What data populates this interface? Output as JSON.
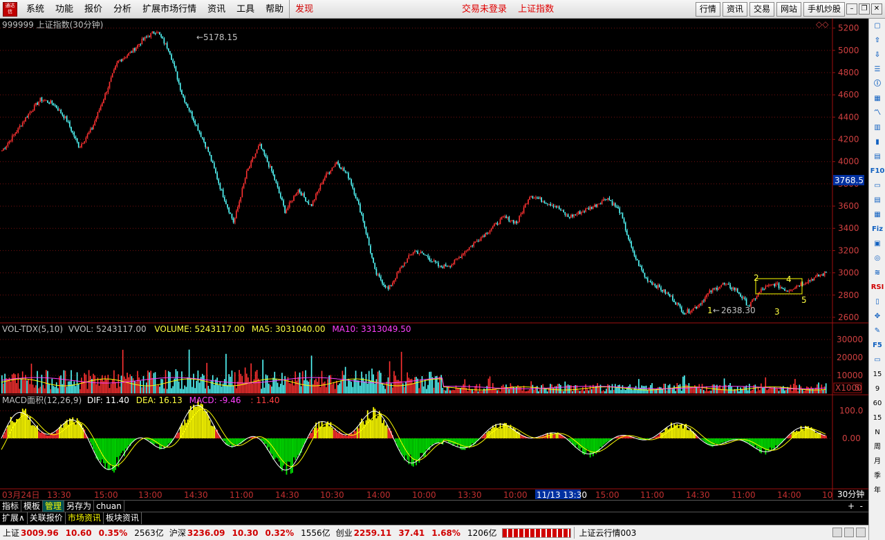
{
  "menubar": {
    "logo_text": "通达信",
    "items": [
      "系统",
      "功能",
      "报价",
      "分析",
      "扩展市场行情",
      "资讯",
      "工具",
      "帮助"
    ],
    "discover": "发现",
    "trade_status": "交易未登录",
    "index_name": "上证指数",
    "right_buttons": [
      "行情",
      "资讯",
      "交易",
      "网站",
      "手机炒股"
    ]
  },
  "chart_data": [
    {
      "type": "candlestick",
      "title": "999999 上证指数(30分钟)",
      "ylim": [
        2550,
        5260
      ],
      "y_ticks": [
        "5200",
        "5000",
        "4800",
        "4600",
        "4400",
        "4200",
        "4000",
        "3800",
        "3600",
        "3400",
        "3200",
        "3000",
        "2800",
        "2600"
      ],
      "current_price_label": "3768.5",
      "annotations": {
        "high": "5178.15",
        "low": "2638.30",
        "wave_labels": [
          "1",
          "2",
          "3",
          "4",
          "5"
        ]
      },
      "trend": [
        4100,
        4250,
        4420,
        4560,
        4520,
        4380,
        4130,
        4300,
        4600,
        4900,
        4980,
        5100,
        5178.15,
        5000,
        4600,
        4350,
        4100,
        3750,
        3450,
        3900,
        4150,
        3900,
        3550,
        3750,
        3600,
        3850,
        4000,
        3850,
        3500,
        3000,
        2850,
        3050,
        3200,
        3150,
        3050,
        3080,
        3200,
        3300,
        3400,
        3500,
        3450,
        3700,
        3650,
        3600,
        3500,
        3550,
        3600,
        3680,
        3550,
        3180,
        2950,
        2870,
        2780,
        2638.3,
        2700,
        2830,
        2900,
        2850,
        2700,
        2850,
        2900,
        2840,
        2900,
        2950,
        3000
      ]
    },
    {
      "type": "bar",
      "title": "VOL-TDX(5,10)",
      "vvol": "VVOL: 5243117.00",
      "volume": "VOLUME: 5243117.00",
      "ma5": "MA5: 3031040.00",
      "ma10": "MA10: 3313049.50",
      "y_ticks": [
        "30000",
        "20000",
        "10000",
        "5"
      ],
      "unit": "X1000"
    },
    {
      "type": "bar",
      "title": "MACD面积(12,26,9)",
      "dif": "DIF: 11.40",
      "dea": "DEA: 16.13",
      "macd": "MACD: -9.46",
      "extra": ": 11.40",
      "y_ticks": [
        "100.0",
        "0.00"
      ]
    }
  ],
  "time_axis": {
    "date_label": "03月24日",
    "labels": [
      "13:30",
      "15:00",
      "13:00",
      "14:30",
      "11:00",
      "14:30",
      "10:30",
      "14:00",
      "10:00",
      "13:30",
      "10:00",
      "11/13 13:30",
      "15:00",
      "11:00",
      "14:30",
      "11:00",
      "14:00",
      "10"
    ],
    "period": "30分钟"
  },
  "right_panel": {
    "indicator_numbers": [
      "15",
      "9",
      "60",
      "15",
      "N",
      "周",
      "月",
      "季",
      "年"
    ]
  },
  "tabs_row1": [
    "指标",
    "模板",
    "管理",
    "另存为",
    "chuan"
  ],
  "tabs_row2": [
    "扩展∧",
    "关联报价",
    "市场资讯",
    "板块资讯"
  ],
  "statusbar": {
    "sh_label": "上证",
    "sh_value": "3009.96",
    "sh_change": "10.60",
    "sh_pct": "0.35%",
    "sh_amount": "2563亿",
    "hs_label": "沪深",
    "hs_value": "3236.09",
    "hs_change": "10.30",
    "hs_pct": "0.32%",
    "hs_amount": "1556亿",
    "cy_label": "创业",
    "cy_value": "2259.11",
    "cy_change": "37.41",
    "cy_pct": "1.68%",
    "cy_amount": "1206亿",
    "news": "上证云行情003"
  },
  "colors": {
    "up": "#ff3232",
    "down": "#54fcfc",
    "ma5": "#ffffff",
    "ma10": "#ffff00",
    "macd_up": "#ff3030",
    "macd_down": "#00e000",
    "grid": "#7a1010"
  }
}
